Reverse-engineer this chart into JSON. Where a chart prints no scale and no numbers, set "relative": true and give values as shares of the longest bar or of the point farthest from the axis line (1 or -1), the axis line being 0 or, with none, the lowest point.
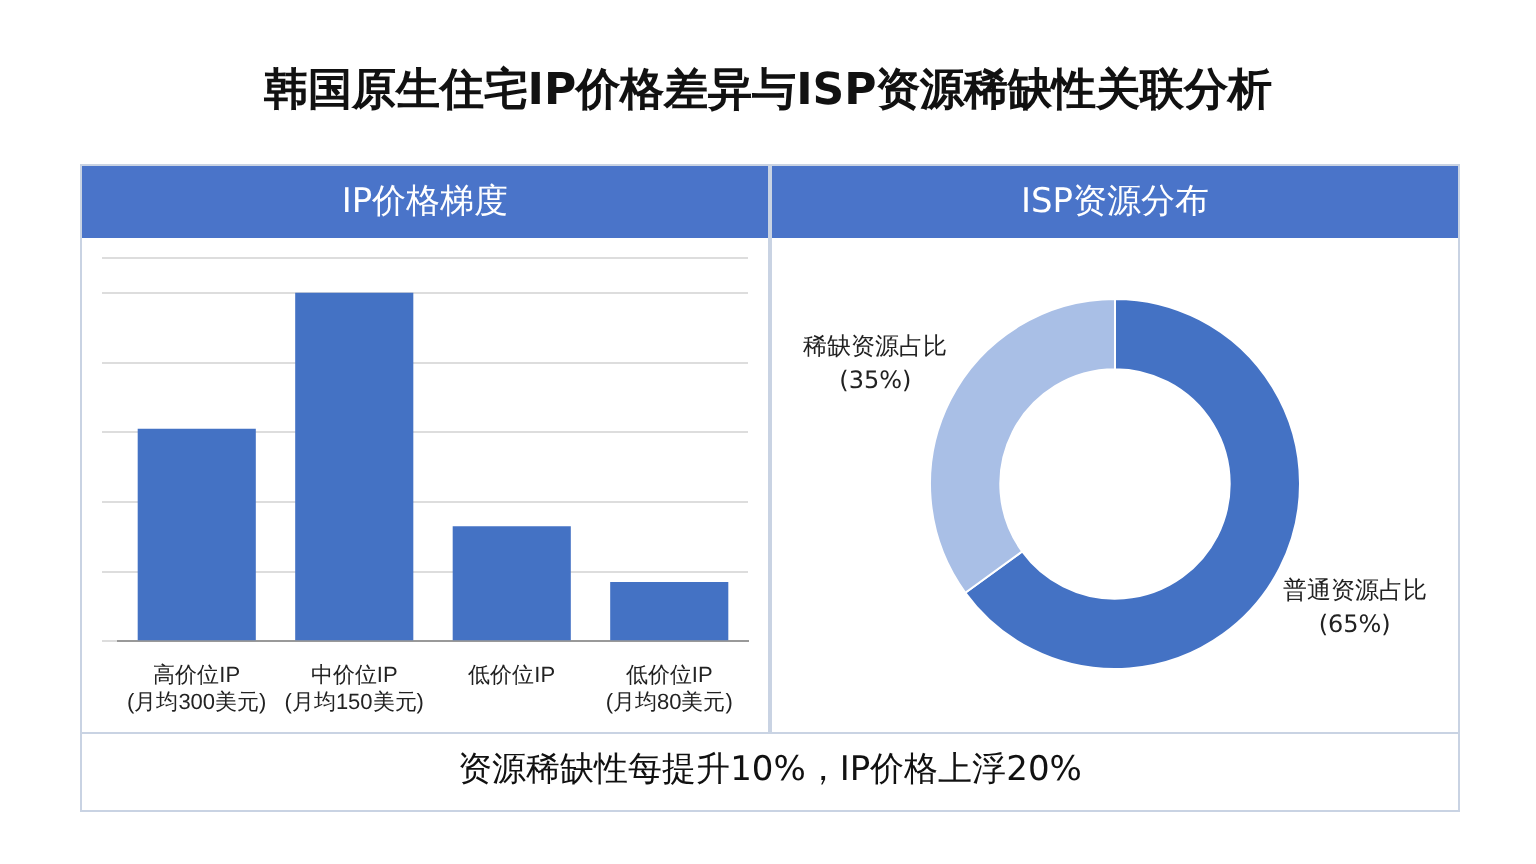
{
  "chart_data": [
    {
      "type": "bar",
      "title": "IP价格梯度",
      "annotations": [
        "韩国原生住宅IP价格差异与ISP资源稀缺性关联分析"
      ],
      "categories": [
        "高价位IP\n(月均300美元)",
        "中价位IP\n(月均150美元)",
        "低价位IP",
        "低价位IP\n(月均80美元)"
      ],
      "values": [
        0.61,
        1,
        0.33,
        0.17
      ],
      "color": "#4472c4",
      "relative": true,
      "grid": "y",
      "legend": false
    },
    {
      "type": "donut",
      "title": "ISP资源分布",
      "annotations": [
        "资源稀缺性每提升10%，IP价格上浮20%"
      ],
      "categories": [
        "普通资源占比",
        "稀缺资源占比"
      ],
      "values": [
        65,
        35
      ],
      "colors": [
        "#4472c4",
        "#a9bfe6"
      ],
      "value_labels": [
        "(65%)",
        "(35%)"
      ],
      "legend": false
    }
  ]
}
